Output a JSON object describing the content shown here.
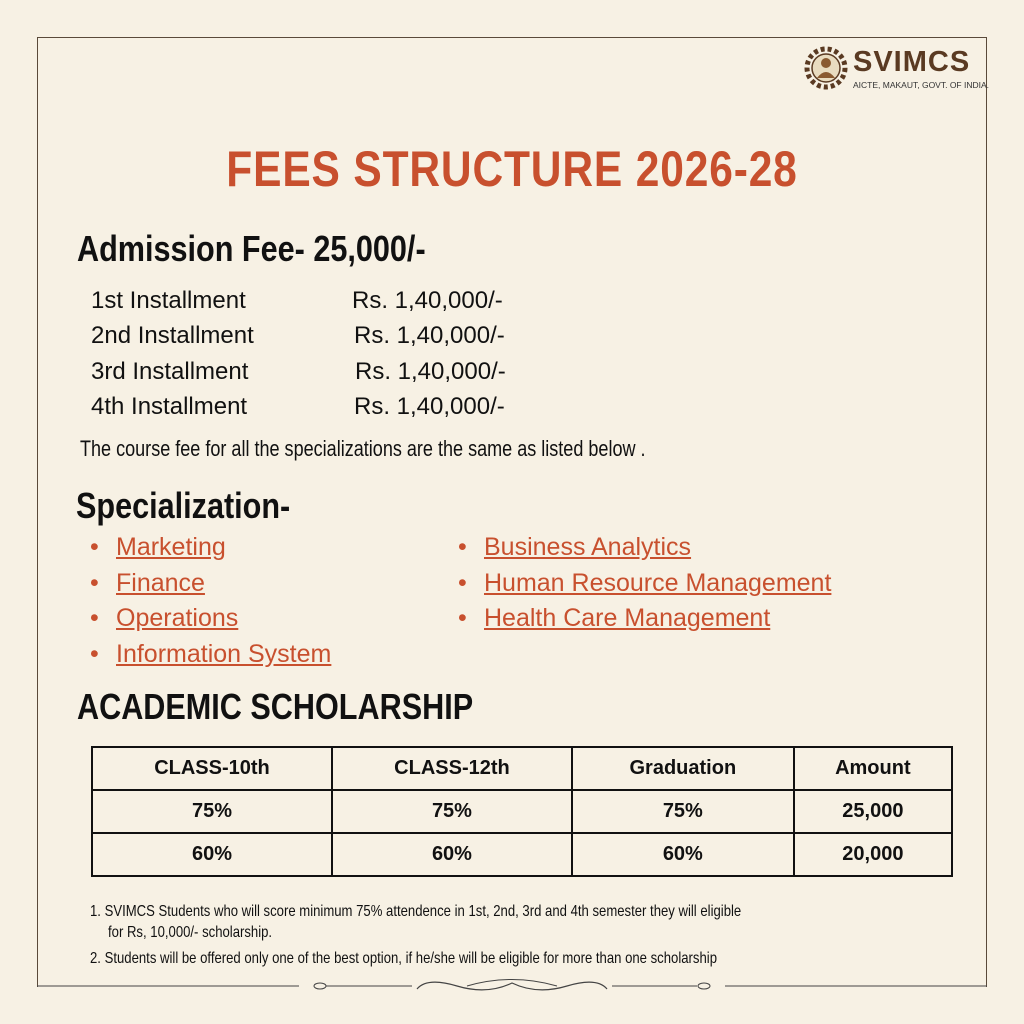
{
  "logo": {
    "name": "SVIMCS",
    "subtitle": "AICTE, MAKAUT, GOVT. OF INDIA."
  },
  "title": "FEES STRUCTURE 2026-28",
  "admission_fee": "Admission Fee- 25,000/-",
  "installments": [
    {
      "label": "1st Installment",
      "amount": "Rs. 1,40,000/-"
    },
    {
      "label": "2nd Installment",
      "amount": "Rs. 1,40,000/-"
    },
    {
      "label": "3rd Installment",
      "amount": "Rs. 1,40,000/-"
    },
    {
      "label": "4th Installment",
      "amount": "Rs. 1,40,000/-"
    }
  ],
  "course_note": "The course fee for all the specializations are the same as listed below .",
  "specialization": {
    "heading": "Specialization-",
    "bullet": "•",
    "left": [
      "Marketing",
      "Finance",
      "Operations",
      "Information System"
    ],
    "right": [
      "Business Analytics",
      "Human Resource Management",
      "Health Care Management"
    ]
  },
  "scholarship": {
    "heading": "ACADEMIC SCHOLARSHIP",
    "headers": [
      "CLASS-10th",
      "CLASS-12th",
      "Graduation",
      "Amount"
    ],
    "rows": [
      [
        "75%",
        "75%",
        "75%",
        "25,000"
      ],
      [
        "60%",
        "60%",
        "60%",
        "20,000"
      ]
    ]
  },
  "footnotes": [
    "1. SVIMCS Students who will score minimum 75% attendence in 1st, 2nd, 3rd and 4th semester they will eligible",
    "for Rs, 10,000/- scholarship.",
    "2. Students will be offered only one of the best option, if he/she will be eligible for more  than one scholarship"
  ],
  "colors": {
    "accent": "#c8502e",
    "background": "#f7f1e4",
    "logo": "#5a3a22"
  }
}
